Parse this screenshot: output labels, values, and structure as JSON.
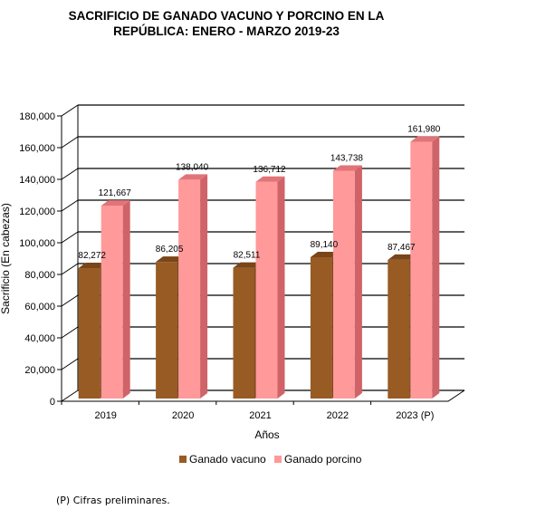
{
  "title_lines": [
    "SACRIFICIO DE GANADO VACUNO Y PORCINO EN LA",
    "REPÚBLICA: ENERO - MARZO 2019-23"
  ],
  "footnote": "(P) Cifras preliminares.",
  "colors": {
    "vacuno_front": "#985B24",
    "vacuno_top": "#7A4518",
    "vacuno_side": "#6E3D14",
    "porcino_front": "#FF999A",
    "porcino_top": "#E27479",
    "porcino_side": "#D06368",
    "gridline": "#000000"
  },
  "chart_data": {
    "type": "bar",
    "title": "SACRIFICIO DE GANADO VACUNO Y PORCINO EN LA REPÚBLICA: ENERO - MARZO 2019-23",
    "xlabel": "Años",
    "ylabel": "Sacrificio (En cabezas)",
    "categories": [
      "2019",
      "2020",
      "2021",
      "2022",
      "2023 (P)"
    ],
    "series": [
      {
        "name": "Ganado vacuno",
        "values": [
          82272,
          86205,
          82511,
          89140,
          87467
        ],
        "labels": [
          "82,272",
          "86,205",
          "82,511",
          "89,140",
          "87,467"
        ]
      },
      {
        "name": "Ganado porcino",
        "values": [
          121667,
          138040,
          136712,
          143738,
          161980
        ],
        "labels": [
          "121,667",
          "138,040",
          "136,712",
          "143,738",
          "161,980"
        ]
      }
    ],
    "ylim": [
      0,
      180000
    ],
    "yticks": [
      0,
      20000,
      40000,
      60000,
      80000,
      100000,
      120000,
      140000,
      160000,
      180000
    ],
    "ytick_labels": [
      "0",
      "20,000",
      "40,000",
      "60,000",
      "80,000",
      "100,000",
      "120,000",
      "140,000",
      "160,000",
      "180,000"
    ],
    "grid": true,
    "legend_position": "bottom",
    "style": "3d-clustered-column"
  }
}
